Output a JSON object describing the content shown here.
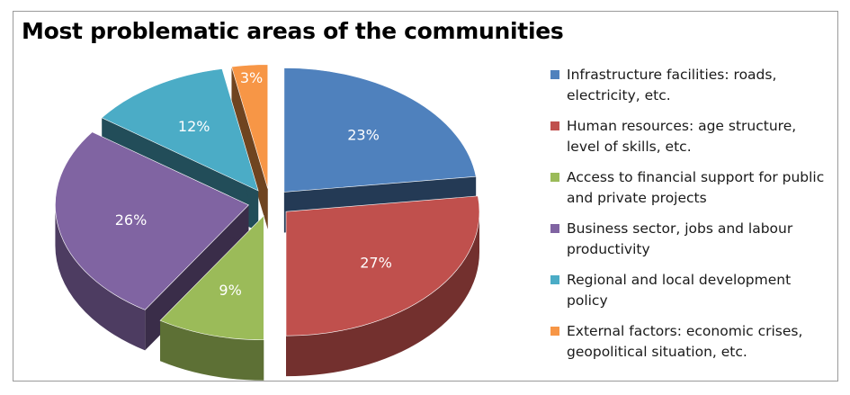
{
  "chart_data": {
    "type": "pie",
    "title": "Most problematic areas of the communities",
    "legend_position": "right",
    "slices": [
      {
        "label": "Infrastructure facilities: roads, electricity, etc.",
        "value": 23,
        "display": "23%",
        "color": "#4F81BD"
      },
      {
        "label": "Human resources: age structure, level of skills, etc.",
        "value": 27,
        "display": "27%",
        "color": "#C0504D"
      },
      {
        "label": "Access to financial support for public and private projects",
        "value": 9,
        "display": "9%",
        "color": "#9BBB59"
      },
      {
        "label": "Business sector, jobs and labour productivity",
        "value": 26,
        "display": "26%",
        "color": "#8064A2"
      },
      {
        "label": "Regional and local development policy",
        "value": 12,
        "display": "12%",
        "color": "#4BACC6"
      },
      {
        "label": "External factors: economic crises, geopolitical situation, etc.",
        "value": 3,
        "display": "3%",
        "color": "#F79646"
      }
    ]
  }
}
